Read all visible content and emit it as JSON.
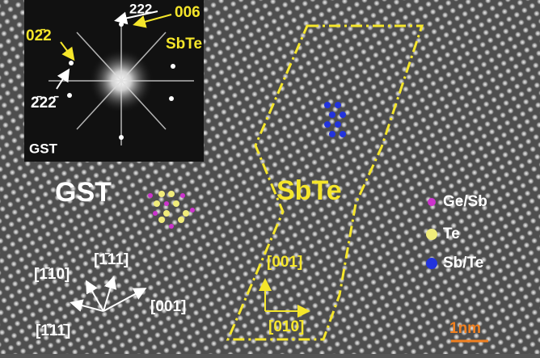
{
  "fft_inset": {
    "spot_222": "222",
    "spot_006": "006",
    "phase_sbte": "SbTe",
    "spot_0-22": "02̄2",
    "spot_-22-2": "2̄22̄",
    "phase_gst": "GST"
  },
  "regions": {
    "gst": "GST",
    "sbte": "SbTe"
  },
  "legend": [
    "Ge/Sb",
    "Te",
    "Sb/Te"
  ],
  "gst_directions": [
    "[1̄10]",
    "[1̄11]",
    "[001]",
    "[1̄11̄]"
  ],
  "sbte_directions": [
    "[001]",
    "[010]"
  ],
  "scale_bar": "1nm"
}
